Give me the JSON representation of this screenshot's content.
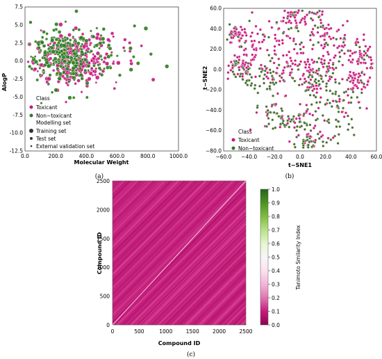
{
  "figure": {
    "captions": [
      "(a)",
      "(b)",
      "(c)"
    ]
  },
  "chart_data": [
    {
      "type": "scatter",
      "panel": "(a)",
      "xlabel": "Molecular Weight",
      "ylabel": "AlogP",
      "xlim": [
        0,
        1000
      ],
      "ylim": [
        -12.5,
        7.5
      ],
      "xticks": [
        "0.0",
        "200.0",
        "400.0",
        "600.0",
        "800.0",
        "1000.0"
      ],
      "yticks": [
        "7.5",
        "5.0",
        "2.5",
        "0.0",
        "-2.5",
        "-5.0",
        "-7.5",
        "-10.0",
        "-12.5"
      ],
      "legend": {
        "placement": "lower-left",
        "title": "Class",
        "entries": [
          "Toxicant",
          "Non−toxicant",
          "Modelling set",
          "Training set",
          "Test set",
          "External validation set"
        ]
      },
      "colors": {
        "toxicant": "#c51b7d",
        "non_toxicant": "#2a7d1e"
      },
      "series": [
        {
          "name": "Toxicant",
          "centroid": [
            300,
            0.3
          ],
          "spread": [
            120,
            1.8
          ],
          "approx_count": 900
        },
        {
          "name": "Non−toxicant",
          "centroid": [
            250,
            0.6
          ],
          "spread": [
            150,
            2.0
          ],
          "approx_count": 900
        }
      ]
    },
    {
      "type": "scatter",
      "panel": "(b)",
      "xlabel": "t−SNE1",
      "ylabel": "t−SNE2",
      "xlim": [
        -60,
        60
      ],
      "ylim": [
        -80,
        60
      ],
      "xticks": [
        "−60.0",
        "−40.0",
        "−20.0",
        "0.0",
        "20.0",
        "40.0",
        "60.0"
      ],
      "yticks": [
        "60.0",
        "40.0",
        "20.0",
        "0.0",
        "−20.0",
        "−40.0",
        "−60.0",
        "−80.0"
      ],
      "legend": {
        "placement": "lower-left",
        "title": "Class",
        "entries": [
          "Toxicant",
          "Non−toxicant"
        ]
      },
      "colors": {
        "toxicant": "#c51b7d",
        "non_toxicant": "#2a7d1e"
      },
      "series": [
        {
          "name": "Toxicant",
          "approx_count": 700
        },
        {
          "name": "Non−toxicant",
          "approx_count": 600
        }
      ]
    },
    {
      "type": "heatmap",
      "panel": "(c)",
      "xlabel": "Compound ID",
      "ylabel": "Compound ID",
      "xlim": [
        0,
        2500
      ],
      "ylim": [
        0,
        2500
      ],
      "xticks": [
        "0",
        "500",
        "1000",
        "1500",
        "2000",
        "2500"
      ],
      "yticks": [
        "0",
        "500",
        "1000",
        "1500",
        "2000",
        "2500"
      ],
      "colorbar": {
        "label": "Tanimoto Smilarity Index",
        "range": [
          0.0,
          1.0
        ],
        "ticks": [
          "1.0",
          "0.9",
          "0.8",
          "0.7",
          "0.6",
          "0.5",
          "0.4",
          "0.3",
          "0.2",
          "0.1",
          "0.0"
        ],
        "colors": [
          "#8e0152",
          "#c51b7d",
          "#de77ae",
          "#f1b6da",
          "#fde0ef",
          "#f7f7f7",
          "#e6f5d0",
          "#b8e186",
          "#7fbc41",
          "#4d9221",
          "#276419"
        ]
      },
      "typical_value": 0.12
    }
  ]
}
